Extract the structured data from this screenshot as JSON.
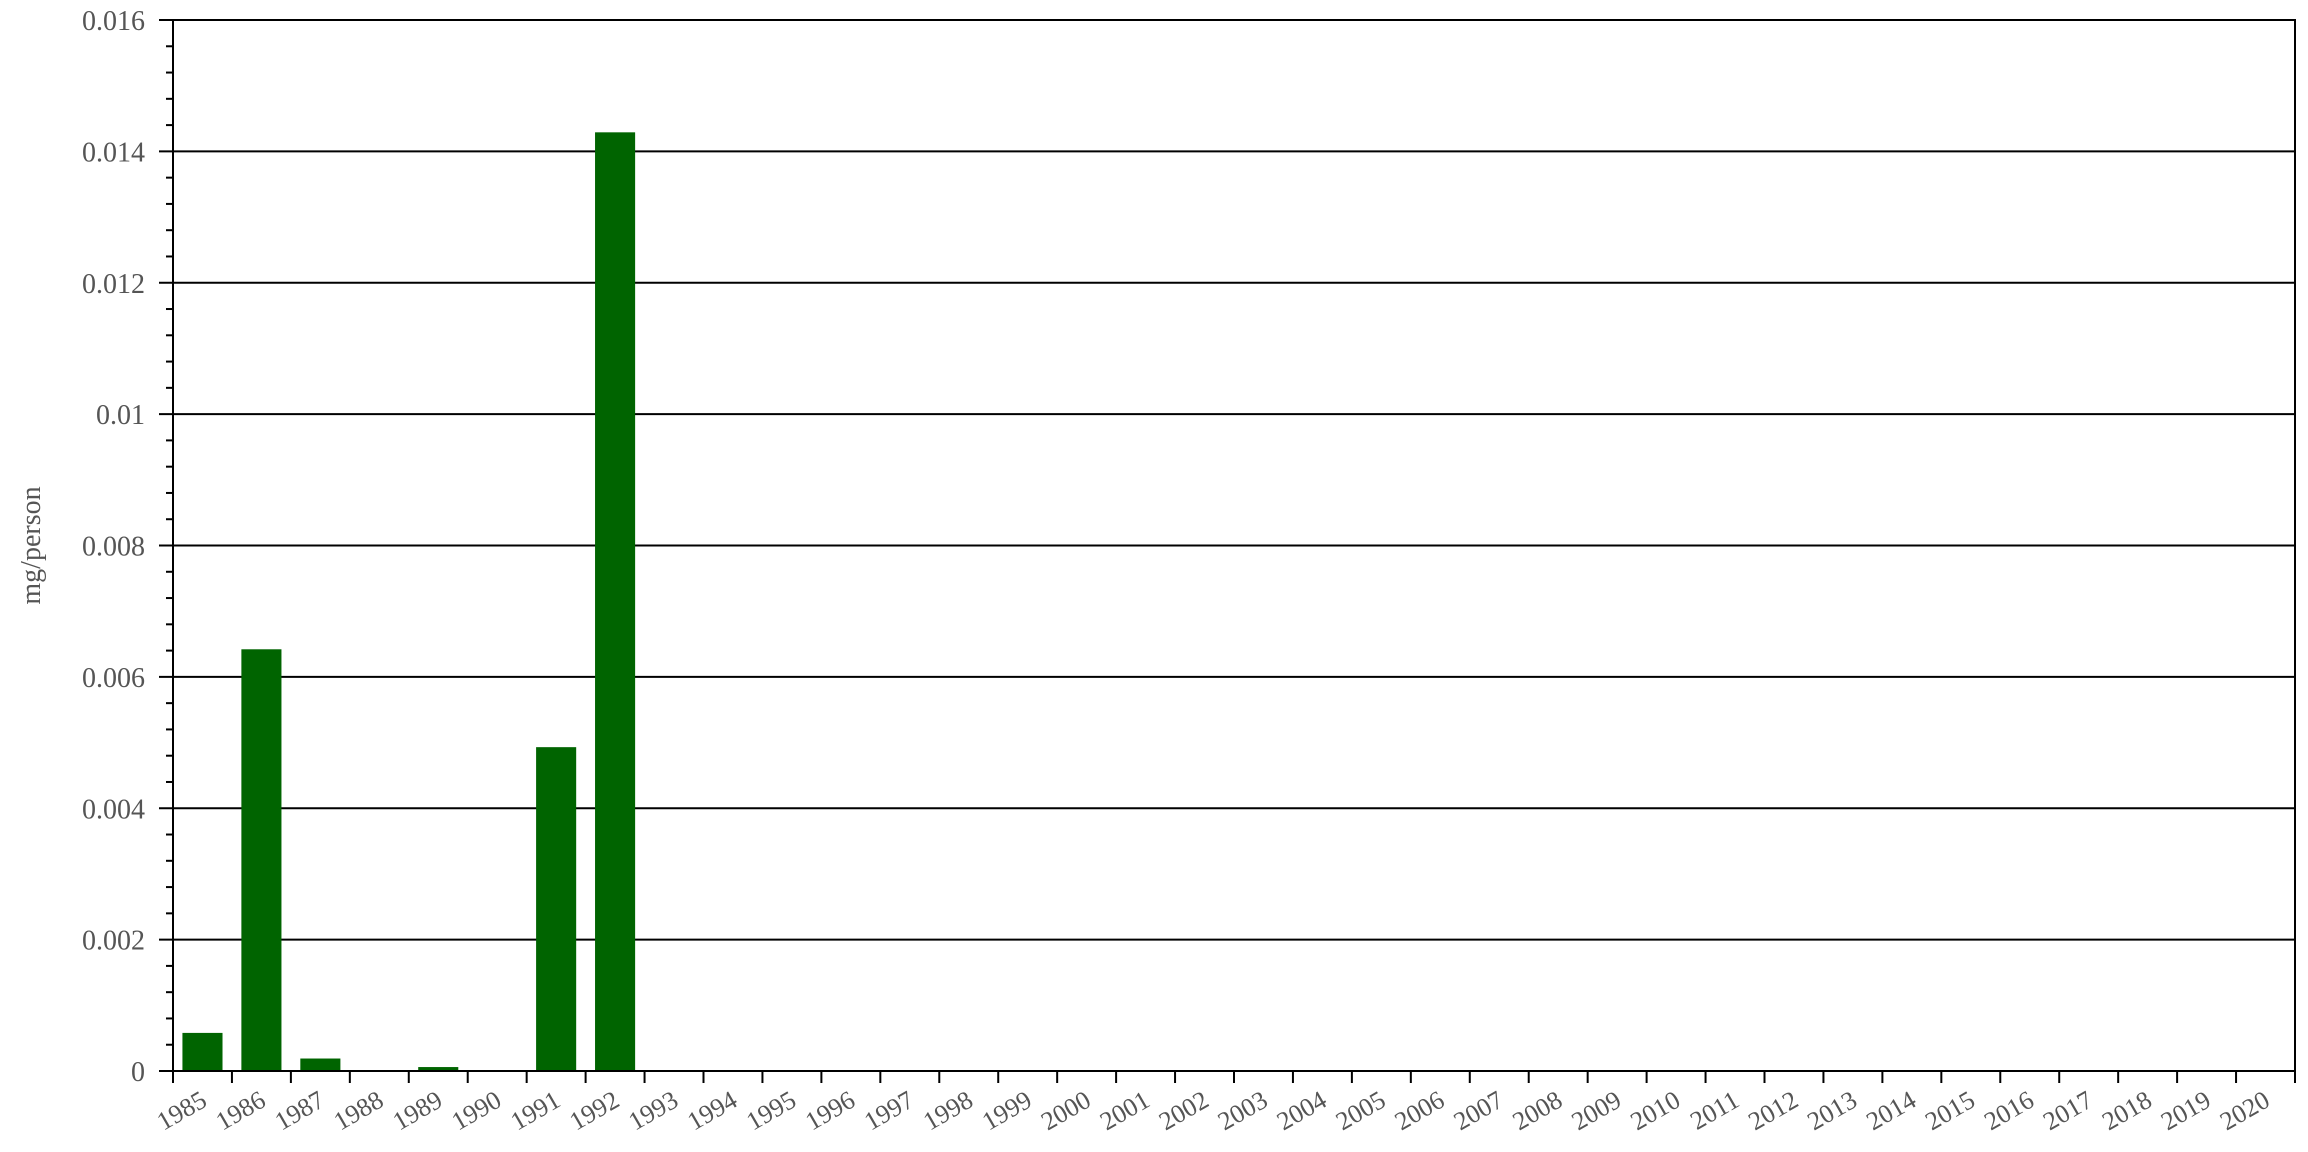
{
  "chart_data": {
    "type": "bar",
    "title": "",
    "xlabel": "",
    "ylabel": "mg/person",
    "ylim": [
      0,
      0.016
    ],
    "y_ticks": [
      "0",
      "0.002",
      "0.004",
      "0.006",
      "0.008",
      "0.01",
      "0.012",
      "0.014",
      "0.016"
    ],
    "grid": true,
    "legend": "none",
    "bar_color": "#006400",
    "categories": [
      "1985",
      "1986",
      "1987",
      "1988",
      "1989",
      "1990",
      "1991",
      "1992",
      "1993",
      "1994",
      "1995",
      "1996",
      "1997",
      "1998",
      "1999",
      "2000",
      "2001",
      "2002",
      "2003",
      "2004",
      "2005",
      "2006",
      "2007",
      "2008",
      "2009",
      "2010",
      "2011",
      "2012",
      "2013",
      "2014",
      "2015",
      "2016",
      "2017",
      "2018",
      "2019",
      "2020"
    ],
    "values": [
      0.00058,
      0.00642,
      0.00019,
      0,
      6e-05,
      0,
      0.00493,
      0.01429,
      0,
      0,
      0,
      0,
      0,
      0,
      0,
      0,
      0,
      0,
      0,
      0,
      0,
      0,
      0,
      0,
      0,
      0,
      0,
      0,
      0,
      0,
      0,
      0,
      0,
      0,
      0,
      0
    ]
  }
}
